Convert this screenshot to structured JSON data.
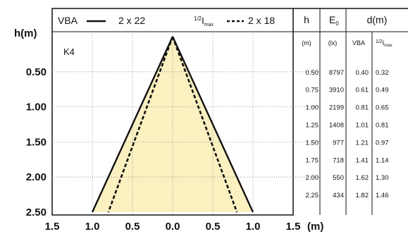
{
  "chart_data": {
    "type": "line",
    "title": "",
    "ylabel": "h(m)",
    "xlabel": "(m)",
    "model_label": "K4",
    "y_ticks": [
      "0.50",
      "1.00",
      "1.50",
      "2.00",
      "2.50"
    ],
    "x_ticks": [
      "1.5",
      "1.0",
      "0.5",
      "0.0",
      "0.5",
      "1.0",
      "1.5"
    ],
    "x_range": [
      -1.5,
      1.5
    ],
    "y_range": [
      0,
      2.5
    ],
    "legend": {
      "vba_label": "VBA",
      "vba_value": "2 x 22",
      "half_prefix": "1/2",
      "half_label": "I",
      "half_sub": "max",
      "half_value": "2 x 18"
    },
    "series": [
      {
        "name": "VBA",
        "style": "solid",
        "points": [
          [
            0,
            0
          ],
          [
            -1.0,
            2.5
          ],
          [
            1.0,
            2.5
          ]
        ]
      },
      {
        "name": "1/2 Imax",
        "style": "dashed",
        "points": [
          [
            0,
            0
          ],
          [
            -0.8,
            2.5
          ],
          [
            0.8,
            2.5
          ]
        ]
      }
    ],
    "table": {
      "headers": {
        "h": "h",
        "e0": "E",
        "e0_sub": "0",
        "d": "d(m)"
      },
      "units": {
        "h": "(m)",
        "e0": "(lx)",
        "vba": "VBA",
        "half_prefix": "1/2",
        "half_label": "I",
        "half_sub": "max"
      },
      "rows": [
        {
          "h": "0.50",
          "e0": "8797",
          "vba": "0.40",
          "half": "0.32"
        },
        {
          "h": "0.75",
          "e0": "3910",
          "vba": "0.61",
          "half": "0.49"
        },
        {
          "h": "1.00",
          "e0": "2199",
          "vba": "0.81",
          "half": "0.65"
        },
        {
          "h": "1.25",
          "e0": "1408",
          "vba": "1.01",
          "half": "0.81"
        },
        {
          "h": "1.50",
          "e0": "977",
          "vba": "1.21",
          "half": "0.97"
        },
        {
          "h": "1.75",
          "e0": "718",
          "vba": "1.41",
          "half": "1.14"
        },
        {
          "h": "2.00",
          "e0": "550",
          "vba": "1.62",
          "half": "1.30"
        },
        {
          "h": "2.25",
          "e0": "434",
          "vba": "1.82",
          "half": "1.46"
        }
      ]
    },
    "colors": {
      "fill": "#fbf0c0",
      "line": "#111111",
      "grid": "#888888"
    }
  }
}
